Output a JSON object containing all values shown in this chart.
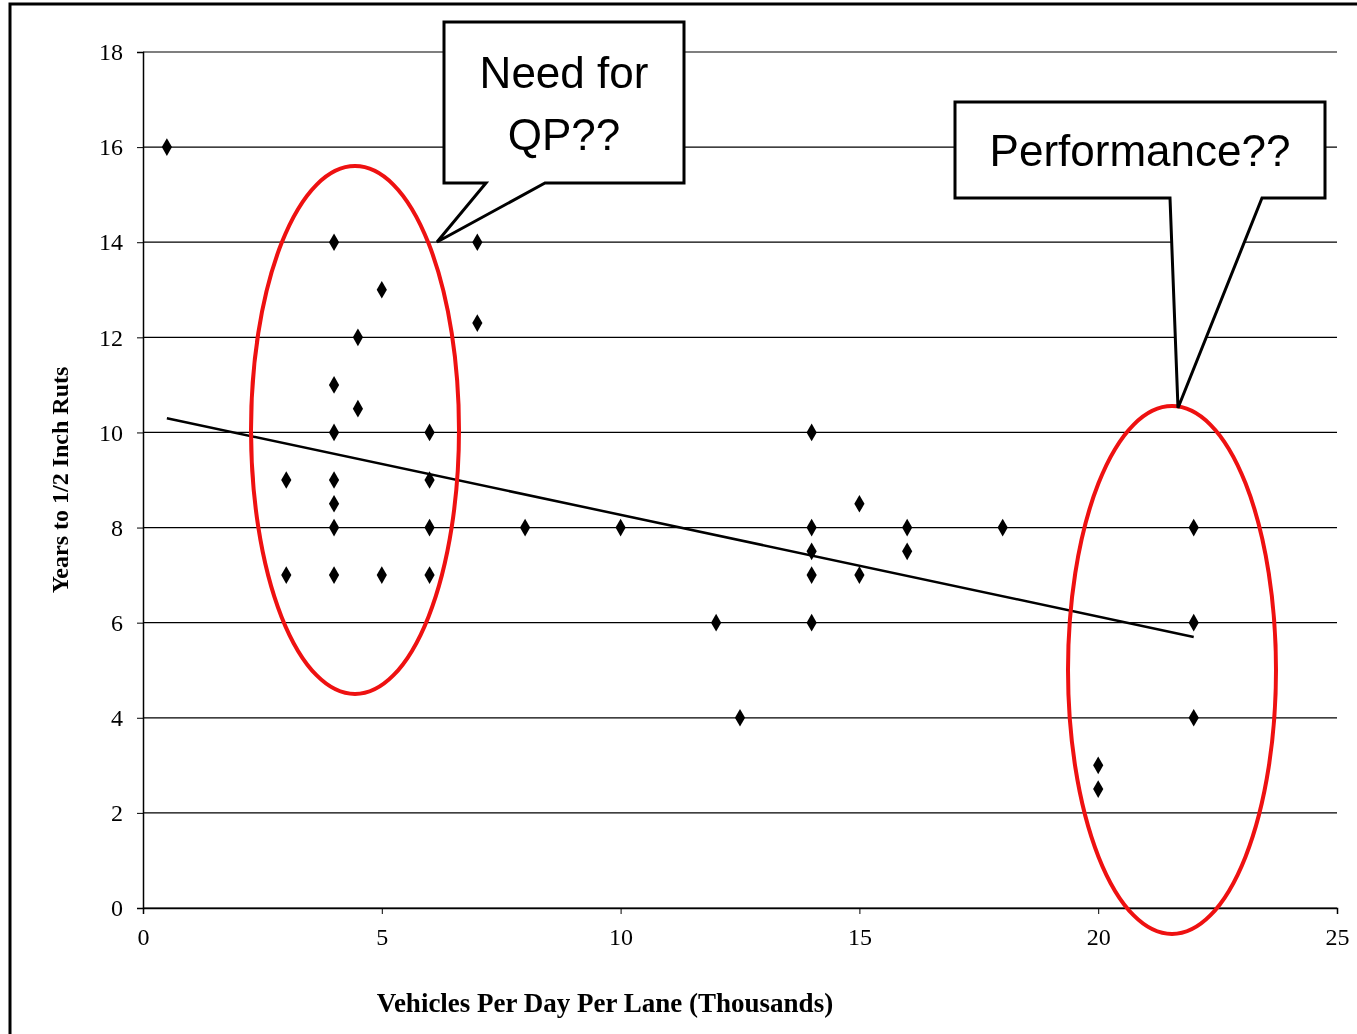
{
  "chart_data": {
    "type": "scatter",
    "xlabel": "Vehicles Per Day Per Lane (Thousands)",
    "ylabel": "Years to 1/2 Inch Ruts",
    "xlim": [
      0,
      25
    ],
    "xticks": [
      0,
      5,
      10,
      15,
      20,
      25
    ],
    "ylim": [
      0,
      18
    ],
    "yticks": [
      0,
      2,
      4,
      6,
      8,
      10,
      12,
      14,
      16,
      18
    ],
    "grid": "y",
    "marker": "diamond",
    "series": [
      {
        "color": "#000000",
        "x": [
          0.5,
          3,
          3,
          4,
          4,
          4,
          4,
          4,
          4,
          4,
          4.5,
          4.5,
          5,
          5,
          6,
          6,
          6,
          6,
          7,
          7,
          8,
          10,
          12,
          12.5,
          14,
          14,
          14,
          14,
          14,
          15,
          15,
          16,
          16,
          18,
          20,
          20,
          22,
          22,
          22
        ],
        "values": [
          16,
          9,
          7,
          14,
          11,
          10,
          9,
          8.5,
          8,
          7,
          12,
          10.5,
          13,
          7,
          10,
          9,
          8,
          7,
          14,
          12.3,
          8,
          8,
          6,
          4,
          10,
          8,
          7.5,
          7,
          6,
          8.5,
          7,
          8,
          7.5,
          8,
          3,
          2.5,
          8,
          6,
          4
        ]
      },
      {
        "type": "line",
        "marker": "none",
        "color": "#000000",
        "x": [
          0.5,
          22
        ],
        "values": [
          10.3,
          5.7
        ]
      }
    ],
    "annotations": [
      "Need for QP??",
      "Performance??"
    ]
  }
}
